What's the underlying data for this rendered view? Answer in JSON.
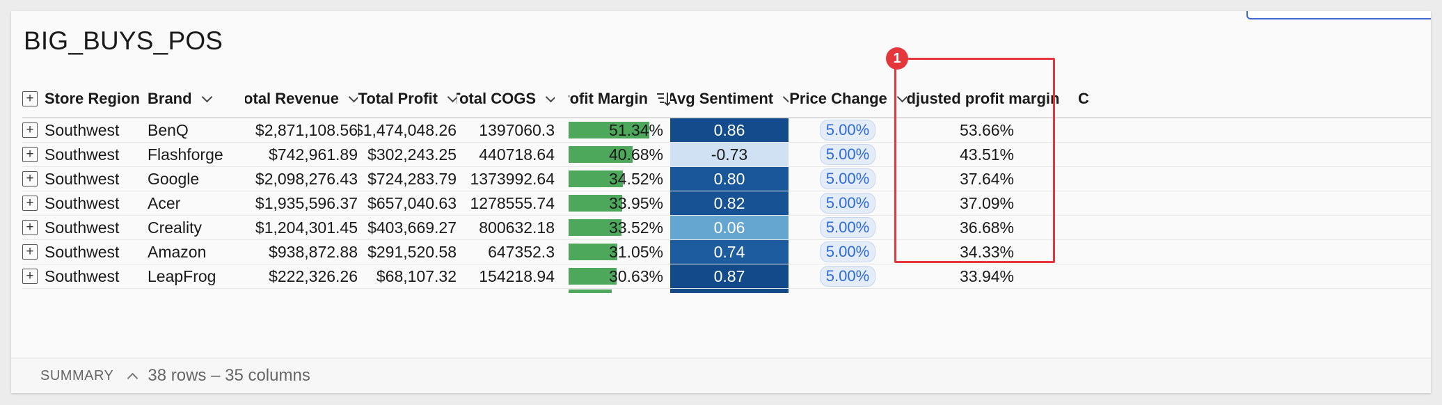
{
  "title": "BIG_BUYS_POS",
  "columns": [
    {
      "key": "region",
      "label": "Store Region",
      "icon": "chevron-down-icon",
      "expand": true
    },
    {
      "key": "brand",
      "label": "Brand",
      "icon": "chevron-down-icon"
    },
    {
      "key": "revenue",
      "label": "Total Revenue",
      "icon": "chevron-down-icon"
    },
    {
      "key": "profit",
      "label": "Total Profit",
      "icon": "chevron-down-icon"
    },
    {
      "key": "cogs",
      "label": "Total COGS",
      "icon": "chevron-down-icon"
    },
    {
      "key": "margin",
      "label": "Profit Margin",
      "icon": "sort-descending-icon"
    },
    {
      "key": "sentiment",
      "label": "Avg Sentiment",
      "icon": "chevron-down-icon"
    },
    {
      "key": "price_change",
      "label": "Price Change",
      "icon": "chevron-down-icon"
    },
    {
      "key": "adj_margin",
      "label": "Adjusted profit margin",
      "icon": "chevron-down-icon"
    },
    {
      "key": "next",
      "label": "C",
      "icon": ""
    }
  ],
  "rows": [
    {
      "region": "Southwest",
      "brand": "BenQ",
      "revenue": "$2,871,108.56",
      "profit": "$1,474,048.26",
      "cogs": "1397060.3",
      "margin": "51.34%",
      "margin_value": 0.5134,
      "sentiment": "0.86",
      "sentiment_color": "#134b8c",
      "sentiment_text_color": "#ffffff",
      "price_change": "5.00%",
      "adj_margin": "53.66%"
    },
    {
      "region": "Southwest",
      "brand": "Flashforge",
      "revenue": "$742,961.89",
      "profit": "$302,243.25",
      "cogs": "440718.64",
      "margin": "40.68%",
      "margin_value": 0.4068,
      "sentiment": "-0.73",
      "sentiment_color": "#cfe1f2",
      "sentiment_text_color": "#1a1a1a",
      "price_change": "5.00%",
      "adj_margin": "43.51%"
    },
    {
      "region": "Southwest",
      "brand": "Google",
      "revenue": "$2,098,276.43",
      "profit": "$724,283.79",
      "cogs": "1373992.64",
      "margin": "34.52%",
      "margin_value": 0.3452,
      "sentiment": "0.80",
      "sentiment_color": "#1a569a",
      "sentiment_text_color": "#ffffff",
      "price_change": "5.00%",
      "adj_margin": "37.64%"
    },
    {
      "region": "Southwest",
      "brand": "Acer",
      "revenue": "$1,935,596.37",
      "profit": "$657,040.63",
      "cogs": "1278555.74",
      "margin": "33.95%",
      "margin_value": 0.3395,
      "sentiment": "0.82",
      "sentiment_color": "#175295",
      "sentiment_text_color": "#ffffff",
      "price_change": "5.00%",
      "adj_margin": "37.09%"
    },
    {
      "region": "Southwest",
      "brand": "Creality",
      "revenue": "$1,204,301.45",
      "profit": "$403,669.27",
      "cogs": "800632.18",
      "margin": "33.52%",
      "margin_value": 0.3352,
      "sentiment": "0.06",
      "sentiment_color": "#65a6d1",
      "sentiment_text_color": "#ffffff",
      "price_change": "5.00%",
      "adj_margin": "36.68%"
    },
    {
      "region": "Southwest",
      "brand": "Amazon",
      "revenue": "$938,872.88",
      "profit": "$291,520.58",
      "cogs": "647352.3",
      "margin": "31.05%",
      "margin_value": 0.3105,
      "sentiment": "0.74",
      "sentiment_color": "#1d5c9f",
      "sentiment_text_color": "#ffffff",
      "price_change": "5.00%",
      "adj_margin": "34.33%"
    },
    {
      "region": "Southwest",
      "brand": "LeapFrog",
      "revenue": "$222,326.26",
      "profit": "$68,107.32",
      "cogs": "154218.94",
      "margin": "30.63%",
      "margin_value": 0.3063,
      "sentiment": "0.87",
      "sentiment_color": "#124a8a",
      "sentiment_text_color": "#ffffff",
      "price_change": "5.00%",
      "adj_margin": "33.94%"
    }
  ],
  "summary": {
    "label": "SUMMARY",
    "counts": "38 rows – 35 columns"
  },
  "annotation": {
    "badge": "1",
    "color": "#e5363c"
  }
}
